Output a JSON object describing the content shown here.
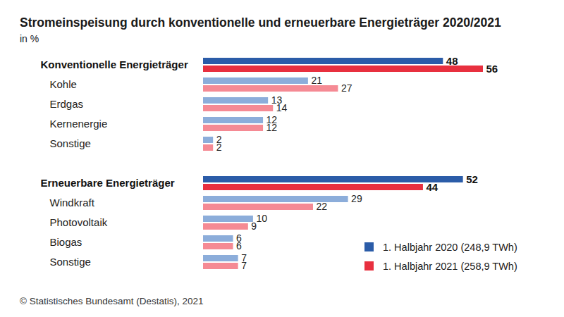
{
  "chart_data": {
    "type": "bar",
    "orientation": "horizontal",
    "title": "Stromeinspeisung durch konventionelle und erneuerbare Energieträger 2020/2021",
    "subtitle": "in %",
    "caption": "© Statistisches Bundesamt (Destatis), 2021",
    "categories": [
      "Konventionelle Energieträger",
      "Kohle",
      "Erdgas",
      "Kernenergie",
      "Sonstige",
      null,
      "Erneuerbare Energieträger",
      "Windkraft",
      "Photovoltaik",
      "Biogas",
      "Sonstige"
    ],
    "series": [
      {
        "name": "1. Halbjahr 2020 (248,9 TWh)",
        "color": "#2b5ca8",
        "colors": [
          "#2b5ca8",
          "#8cadda",
          "#8cadda",
          "#8cadda",
          "#8cadda",
          null,
          "#2b5ca8",
          "#8cadda",
          "#8cadda",
          "#8cadda",
          "#8cadda"
        ],
        "values": [
          48,
          21,
          13,
          12,
          2,
          null,
          52,
          29,
          10,
          6,
          7
        ]
      },
      {
        "name": "1. Halbjahr 2021 (258,9 TWh)",
        "color": "#e8303f",
        "colors": [
          "#e8303f",
          "#f58a94",
          "#f58a94",
          "#f58a94",
          "#f58a94",
          null,
          "#e8303f",
          "#f58a94",
          "#f58a94",
          "#f58a94",
          "#f58a94"
        ],
        "values": [
          56,
          27,
          14,
          12,
          2,
          null,
          44,
          22,
          9,
          6,
          7
        ]
      }
    ],
    "xlim": [
      0,
      56
    ],
    "data_labels": true,
    "tick_labels": "y",
    "legend": "bottom-right",
    "grid": false
  }
}
